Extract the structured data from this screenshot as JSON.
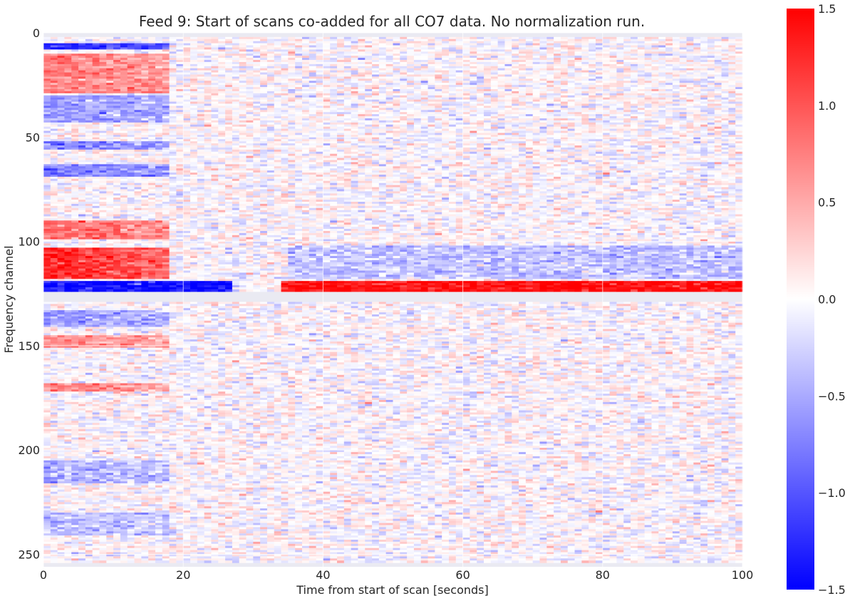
{
  "chart_data": {
    "type": "heatmap",
    "title": "Feed 9: Start of scans co-added for all CO7 data. No normalization run.",
    "xlabel": "Time from start of scan [seconds]",
    "ylabel": "Frequency channel",
    "xlim": [
      0,
      100
    ],
    "ylim": [
      256,
      0
    ],
    "x_ticks": [
      0,
      20,
      40,
      60,
      80,
      100
    ],
    "y_ticks": [
      0,
      50,
      100,
      150,
      200,
      250
    ],
    "grid": true,
    "colormap": "bwr",
    "colorbar": {
      "vmin": -1.5,
      "vmax": 1.5,
      "ticks": [
        1.5,
        1.0,
        0.5,
        0.0,
        -0.5,
        -1.0,
        -1.5
      ],
      "tick_labels": [
        "1.5",
        "1.0",
        "0.5",
        "0.0",
        "−0.5",
        "−1.0",
        "−1.5"
      ],
      "position": "right"
    },
    "masked_channel_ranges": [
      [
        0,
        2
      ],
      [
        124,
        129
      ],
      [
        254,
        256
      ]
    ],
    "features": [
      {
        "channels": [
          5,
          7
        ],
        "value": -1.3,
        "t_end": 18
      },
      {
        "channels": [
          10,
          28
        ],
        "value": 0.8,
        "t_end": 18
      },
      {
        "channels": [
          30,
          42
        ],
        "value": -0.6,
        "t_end": 18
      },
      {
        "channels": [
          52,
          55
        ],
        "value": -0.8,
        "t_end": 18
      },
      {
        "channels": [
          63,
          68
        ],
        "value": -0.8,
        "t_end": 18
      },
      {
        "channels": [
          90,
          98
        ],
        "value": 0.9,
        "t_end": 18
      },
      {
        "channels": [
          103,
          117
        ],
        "value": 1.3,
        "t_end": 18
      },
      {
        "channels": [
          119,
          123
        ],
        "value": -1.4,
        "t_start": 0,
        "t_end": 27
      },
      {
        "channels": [
          119,
          123
        ],
        "value": 1.4,
        "t_start": 34,
        "t_end": 100
      },
      {
        "channels": [
          102,
          117
        ],
        "value": -0.35,
        "t_start": 35,
        "t_end": 100
      },
      {
        "channels": [
          133,
          140
        ],
        "value": -0.6,
        "t_end": 18
      },
      {
        "channels": [
          145,
          150
        ],
        "value": 0.7,
        "t_end": 18
      },
      {
        "channels": [
          168,
          171
        ],
        "value": 0.7,
        "t_end": 18
      },
      {
        "channels": [
          205,
          215
        ],
        "value": -0.5,
        "t_end": 18
      },
      {
        "channels": [
          230,
          240
        ],
        "value": -0.4,
        "t_end": 18
      }
    ],
    "background_noise_sigma": 0.18
  }
}
